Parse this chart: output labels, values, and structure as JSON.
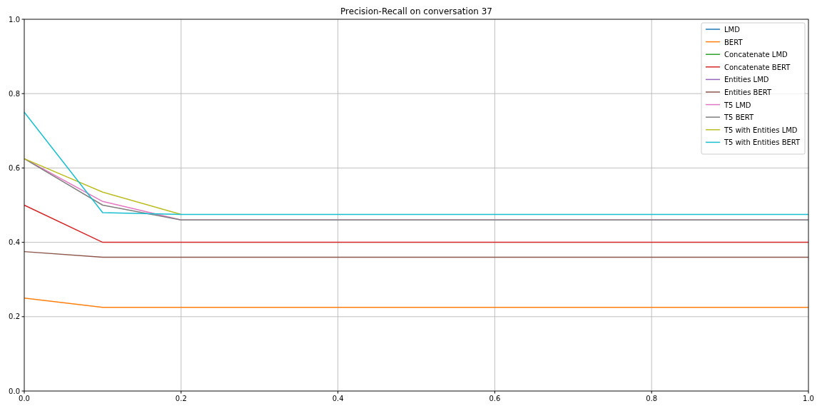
{
  "chart_data": {
    "type": "line",
    "title": "Precision-Recall on conversation 37",
    "x": [
      0,
      0.1,
      0.2,
      1.0
    ],
    "series": [
      {
        "name": "LMD",
        "color": "#1f77b4",
        "values": [
          null,
          null,
          null,
          null
        ]
      },
      {
        "name": "BERT",
        "color": "#ff7f0e",
        "values": [
          0.25,
          0.225,
          0.225,
          0.225
        ]
      },
      {
        "name": "Concatenate LMD",
        "color": "#2ca02c",
        "values": [
          null,
          null,
          null,
          null
        ]
      },
      {
        "name": "Concatenate BERT",
        "color": "#d62728",
        "values": [
          0.5,
          0.4,
          0.4,
          0.4
        ]
      },
      {
        "name": "Entities LMD",
        "color": "#9467bd",
        "values": [
          null,
          null,
          null,
          null
        ]
      },
      {
        "name": "Entities BERT",
        "color": "#8c564b",
        "values": [
          0.375,
          0.36,
          0.36,
          0.36
        ]
      },
      {
        "name": "T5 LMD",
        "color": "#e377c2",
        "values": [
          0.625,
          0.51,
          0.46,
          0.46
        ]
      },
      {
        "name": "T5 BERT",
        "color": "#7f7f7f",
        "values": [
          0.625,
          0.5,
          0.46,
          0.46
        ]
      },
      {
        "name": "T5 with Entities LMD",
        "color": "#bcbd22",
        "values": [
          0.625,
          0.535,
          0.475,
          null
        ]
      },
      {
        "name": "T5 with Entities BERT",
        "color": "#17becf",
        "values": [
          0.75,
          0.48,
          0.475,
          0.475
        ]
      }
    ],
    "xlim": [
      0,
      1
    ],
    "ylim": [
      0,
      1
    ],
    "xticks": [
      {
        "value": 0,
        "label": "0.0"
      },
      0.2,
      0.4,
      0.6,
      0.8,
      {
        "value": 1,
        "label": "1.0"
      }
    ],
    "yticks": [
      {
        "value": 0,
        "label": "0.0"
      },
      0.2,
      0.4,
      0.6,
      0.8,
      {
        "value": 1,
        "label": "1.0"
      }
    ],
    "grid": true,
    "legend": "top right",
    "marker": "none",
    "line_style": "solid"
  }
}
